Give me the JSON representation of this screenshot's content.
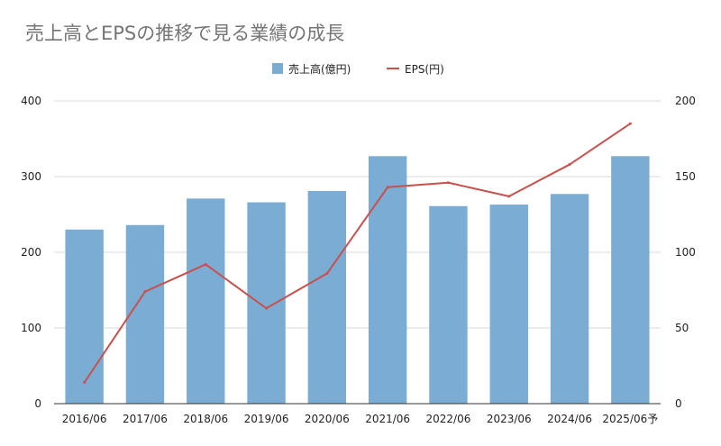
{
  "chart_data": {
    "type": "bar",
    "title": "売上高とEPSの推移で見る業績の成長",
    "categories": [
      "2016/06",
      "2017/06",
      "2018/06",
      "2019/06",
      "2020/06",
      "2021/06",
      "2022/06",
      "2023/06",
      "2024/06",
      "2025/06予"
    ],
    "series": [
      {
        "name": "売上高(億円)",
        "type": "bar",
        "axis": "left",
        "color": "#7bacd3",
        "values": [
          230,
          236,
          271,
          266,
          281,
          327,
          261,
          263,
          277,
          327
        ]
      },
      {
        "name": "EPS(円)",
        "type": "line",
        "axis": "right",
        "color": "#c8504d",
        "values": [
          14,
          74,
          92,
          63,
          86,
          143,
          146,
          137,
          158,
          185
        ]
      }
    ],
    "y_left": {
      "ylim": [
        0,
        400
      ],
      "ticks": [
        "0",
        "100",
        "200",
        "300",
        "400"
      ]
    },
    "y_right": {
      "ylim": [
        0,
        200
      ],
      "ticks": [
        "0",
        "50",
        "100",
        "150",
        "200"
      ]
    },
    "grid": true,
    "legend_position": "top"
  }
}
